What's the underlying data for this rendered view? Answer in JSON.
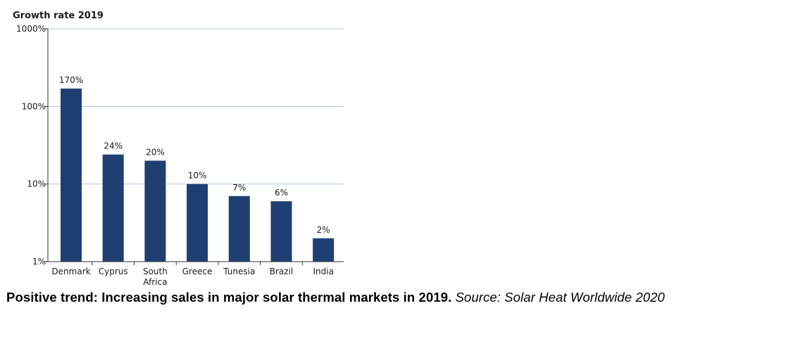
{
  "caption": {
    "main": "Positive trend: Increasing sales in major solar thermal markets in 2019.",
    "source": "Source: Solar Heat Worldwide 2020"
  },
  "chart_data": {
    "type": "bar",
    "title": "Growth rate 2019",
    "xlabel": "",
    "ylabel": "",
    "y_scale": "log",
    "ylim": [
      1,
      1000
    ],
    "y_ticks": [
      {
        "value": 1,
        "label": "1%"
      },
      {
        "value": 10,
        "label": "10%"
      },
      {
        "value": 100,
        "label": "100%"
      },
      {
        "value": 1000,
        "label": "1000%"
      }
    ],
    "grid": "horizontal",
    "bar_color": "#1f3f73",
    "grid_color": "#a9c4d8",
    "categories": [
      [
        "Denmark"
      ],
      [
        "Cyprus"
      ],
      [
        "South",
        "Africa"
      ],
      [
        "Greece"
      ],
      [
        "Tunesia"
      ],
      [
        "Brazil"
      ],
      [
        "India"
      ]
    ],
    "values": [
      170,
      24,
      20,
      10,
      7,
      6,
      2
    ],
    "data_labels": [
      "170%",
      "24%",
      "20%",
      "10%",
      "7%",
      "6%",
      "2%"
    ]
  }
}
